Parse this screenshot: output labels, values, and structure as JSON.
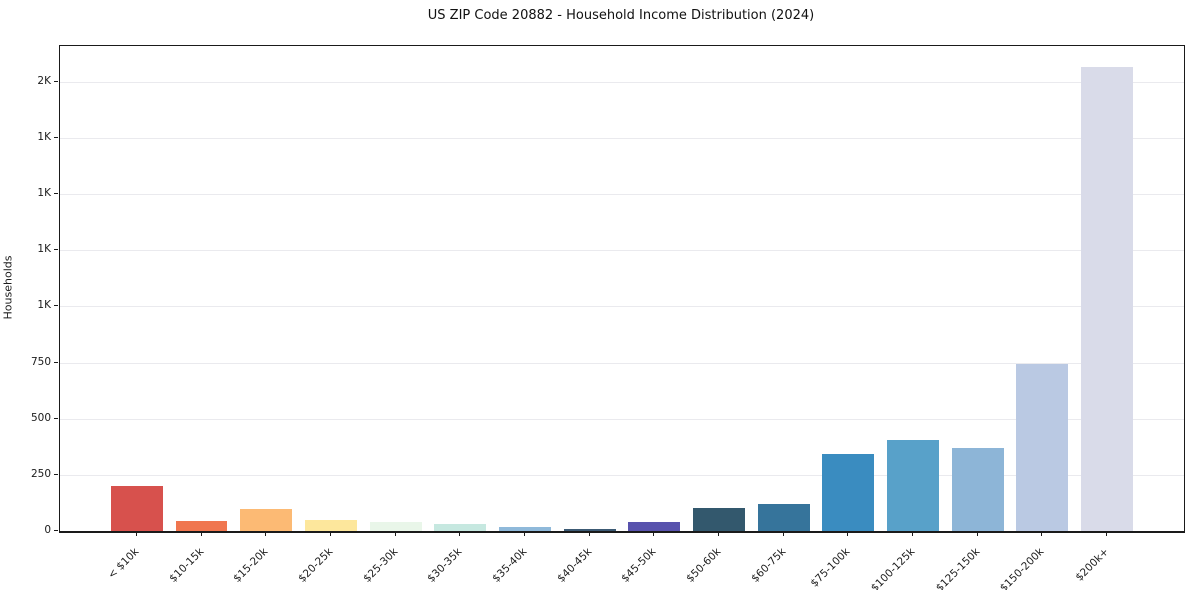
{
  "chart_data": {
    "type": "bar",
    "title": "US ZIP Code 20882 - Household Income Distribution (2024)",
    "xlabel": "",
    "ylabel": "Households",
    "categories": [
      "< $10k",
      "$10-15k",
      "$15-20k",
      "$20-25k",
      "$25-30k",
      "$30-35k",
      "$35-40k",
      "$40-45k",
      "$45-50k",
      "$50-60k",
      "$60-75k",
      "$75-100k",
      "$100-125k",
      "$125-150k",
      "$150-200k",
      "$200k+"
    ],
    "values": [
      200,
      45,
      100,
      50,
      38,
      33,
      20,
      10,
      40,
      103,
      122,
      345,
      406,
      370,
      742,
      2067
    ],
    "bar_colors": [
      "#d7514d",
      "#f0764f",
      "#fcba74",
      "#fde79c",
      "#e9f6e9",
      "#c6e8e0",
      "#8fb9da",
      "#3c5a74",
      "#5852ad",
      "#33586d",
      "#36749b",
      "#3a8cc0",
      "#58a1c9",
      "#8db5d7",
      "#bac9e3",
      "#d9dbe9"
    ],
    "ylim": [
      0,
      2160
    ],
    "yticks": [
      {
        "value": 0,
        "label": "0"
      },
      {
        "value": 250,
        "label": "250"
      },
      {
        "value": 500,
        "label": "500"
      },
      {
        "value": 750,
        "label": "750"
      },
      {
        "value": 1000,
        "label": "1K"
      },
      {
        "value": 1250,
        "label": "1K"
      },
      {
        "value": 1500,
        "label": "1K"
      },
      {
        "value": 1750,
        "label": "1K"
      },
      {
        "value": 2000,
        "label": "2K"
      }
    ],
    "grid": "horizontal",
    "grid_color": "#eaeaee",
    "spine_color": "#1a1a1a",
    "background": "#ffffff",
    "legend": "none",
    "x_label_rotation_deg": 45
  }
}
